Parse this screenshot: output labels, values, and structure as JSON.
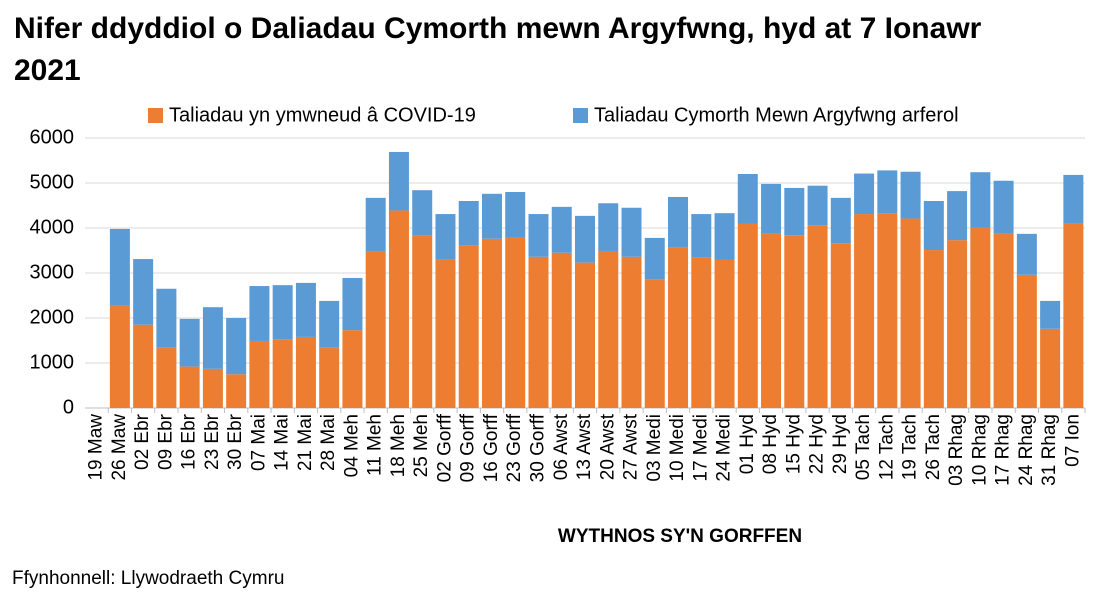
{
  "chart_data": {
    "type": "stacked_bar",
    "title": "Nifer ddyddiol o Daliadau Cymorth mewn Argyfwng, hyd at 7 Ionawr 2021",
    "xlabel": "WYTHNOS SY'N GORFFEN",
    "source": "Ffynhonnell: Llywodraeth Cymru",
    "categories": [
      "19 Maw",
      "26 Maw",
      "02 Ebr",
      "09 Ebr",
      "16 Ebr",
      "23 Ebr",
      "30 Ebr",
      "07 Mai",
      "14 Mai",
      "21 Mai",
      "28 Mai",
      "04 Meh",
      "11 Meh",
      "18 Meh",
      "25 Meh",
      "02 Gorff",
      "09 Gorff",
      "16 Gorff",
      "23 Gorff",
      "30 Gorff",
      "06 Awst",
      "13 Awst",
      "20 Awst",
      "27 Awst",
      "03 Medi",
      "10 Medi",
      "17 Medi",
      "24 Medi",
      "01 Hyd",
      "08 Hyd",
      "15 Hyd",
      "22 Hyd",
      "29 Hyd",
      "05 Tach",
      "12 Tach",
      "19 Tach",
      "26 Tach",
      "03 Rhag",
      "10 Rhag",
      "17 Rhag",
      "24 Rhag",
      "31 Rhag",
      "07 Ion"
    ],
    "series": [
      {
        "name": "Taliadau yn ymwneud â COVID-19",
        "color": "#ed7d31",
        "values": [
          null,
          2270,
          1850,
          1340,
          920,
          870,
          750,
          1490,
          1530,
          1580,
          1340,
          1730,
          3470,
          4390,
          3830,
          3310,
          3620,
          3760,
          3780,
          3360,
          3450,
          3230,
          3490,
          3360,
          2850,
          3560,
          3340,
          3300,
          4090,
          3870,
          3840,
          4060,
          3660,
          4310,
          4330,
          4210,
          3510,
          3730,
          4010,
          3870,
          2960,
          1760,
          4110
        ]
      },
      {
        "name": "Taliadau Cymorth Mewn Argyfwng arferol",
        "color": "#5b9bd5",
        "values": [
          null,
          1710,
          1460,
          1310,
          1060,
          1370,
          1250,
          1220,
          1200,
          1200,
          1040,
          1160,
          1200,
          1300,
          1010,
          1000,
          980,
          1000,
          1020,
          950,
          1020,
          1040,
          1060,
          1090,
          930,
          1130,
          970,
          1030,
          1110,
          1110,
          1050,
          880,
          1010,
          900,
          950,
          1040,
          1090,
          1090,
          1230,
          1180,
          910,
          620,
          1070
        ]
      }
    ],
    "ylim": [
      0,
      6000
    ],
    "yticks": [
      0,
      1000,
      2000,
      3000,
      4000,
      5000,
      6000
    ],
    "grid": true,
    "legend": "top"
  }
}
